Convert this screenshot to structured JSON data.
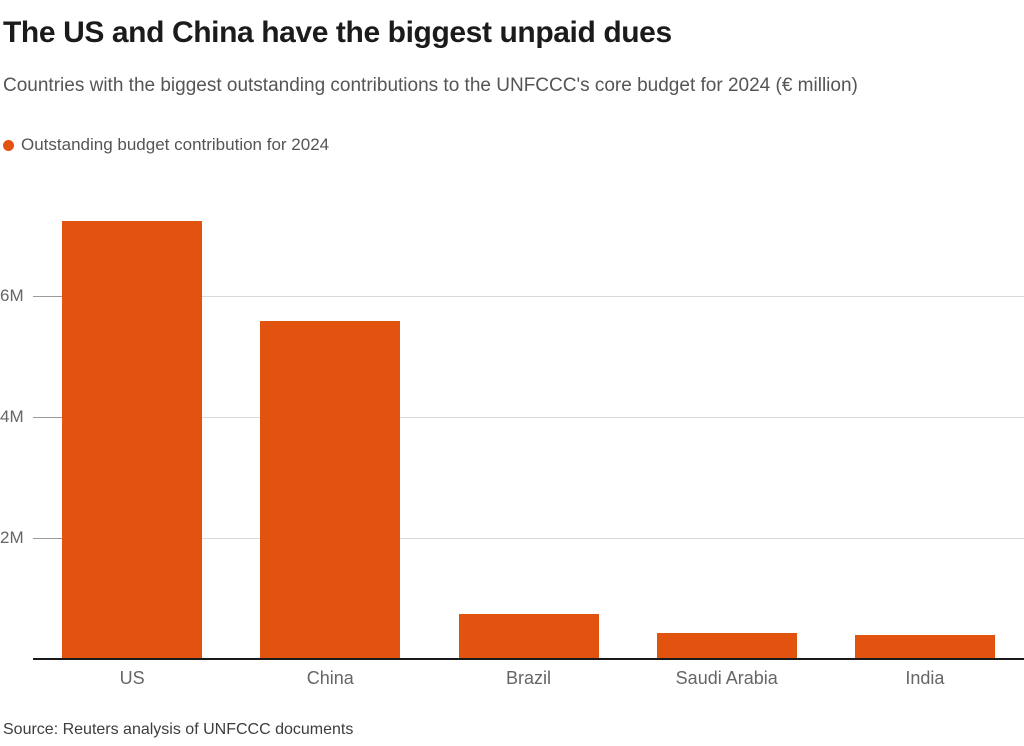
{
  "header": {
    "title": "The US and China have the biggest unpaid dues",
    "subtitle": "Countries with the biggest outstanding contributions to the UNFCCC's core budget for 2024 (€ million)"
  },
  "legend": {
    "label": "Outstanding budget contribution for 2024"
  },
  "footer": {
    "source": "Source: Reuters analysis of UNFCCC documents"
  },
  "colors": {
    "bar": "#e2530f",
    "gridline": "#d9d9d9",
    "tick": "#9b9b9b",
    "axis_line": "#1a1a1a",
    "muted_text": "#666666"
  },
  "chart_data": {
    "type": "bar",
    "title": "The US and China have the biggest unpaid dues",
    "subtitle": "Countries with the biggest outstanding contributions to the UNFCCC's core budget for 2024 (€ million)",
    "unit": "€ million",
    "categories": [
      "US",
      "China",
      "Brazil",
      "Saudi Arabia",
      "India"
    ],
    "series": [
      {
        "name": "Outstanding budget contribution for 2024",
        "values": [
          7.25,
          5.6,
          0.74,
          0.43,
          0.39
        ]
      }
    ],
    "xlabel": "",
    "ylabel": "",
    "ylim": [
      0,
      7.76
    ],
    "yticks": [
      {
        "value": 2,
        "label": "2M"
      },
      {
        "value": 4,
        "label": "4M"
      },
      {
        "value": 6,
        "label": "6M"
      }
    ],
    "grid": "horizontal",
    "legend_position": "top-left",
    "source": "Source: Reuters analysis of UNFCCC documents"
  }
}
